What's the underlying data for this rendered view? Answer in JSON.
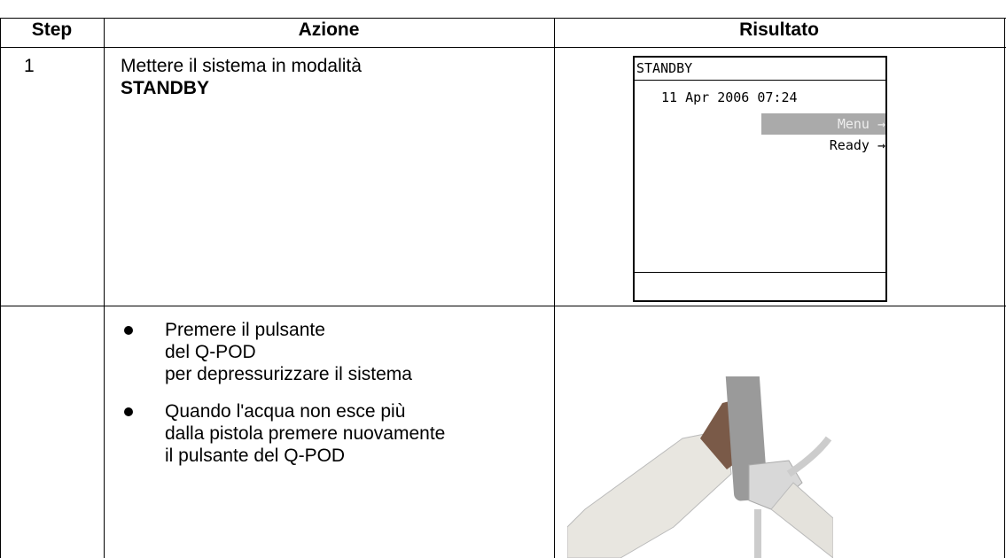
{
  "table": {
    "columns": [
      "Step",
      "Azione",
      "Risultato"
    ],
    "rows": [
      {
        "step": "1",
        "action": [
          "Mettere il sistema in modalità",
          "STANDBY"
        ],
        "screen": {
          "title": "STANDBY",
          "datetime": "11 Apr 2006 07:24",
          "items": [
            "Menu →",
            "Ready →"
          ]
        }
      },
      {
        "bullets": [
          [
            "Premere il pulsante",
            "del Q-POD",
            "per depressurizzare il sistema"
          ],
          [
            "Quando l'acqua non esce più",
            "dalla pistola premere nuovamente",
            "il pulsante del Q-POD"
          ]
        ]
      }
    ]
  }
}
